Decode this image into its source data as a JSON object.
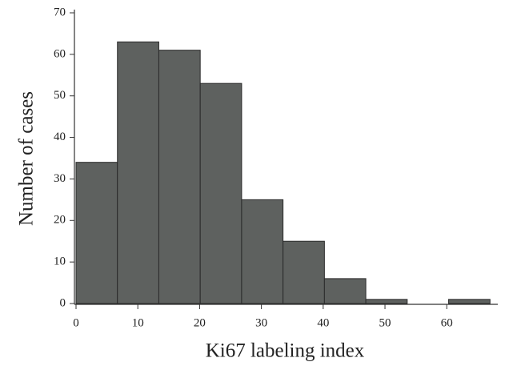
{
  "chart_data": {
    "type": "histogram",
    "xlabel": "Ki67 labeling index",
    "ylabel": "Number of cases",
    "bins": [
      0,
      6.7,
      13.4,
      20.1,
      26.8,
      33.5,
      40.2,
      46.9,
      53.6,
      60.3,
      67
    ],
    "values": [
      34,
      63,
      61,
      53,
      25,
      15,
      6,
      1,
      0,
      1
    ],
    "color": "#5e615f",
    "xlim": [
      0,
      68
    ],
    "xticks": [
      0,
      10,
      20,
      30,
      40,
      50,
      60
    ],
    "ylim": [
      0,
      70
    ],
    "yticks": [
      0,
      10,
      20,
      30,
      40,
      50,
      60,
      70
    ]
  }
}
